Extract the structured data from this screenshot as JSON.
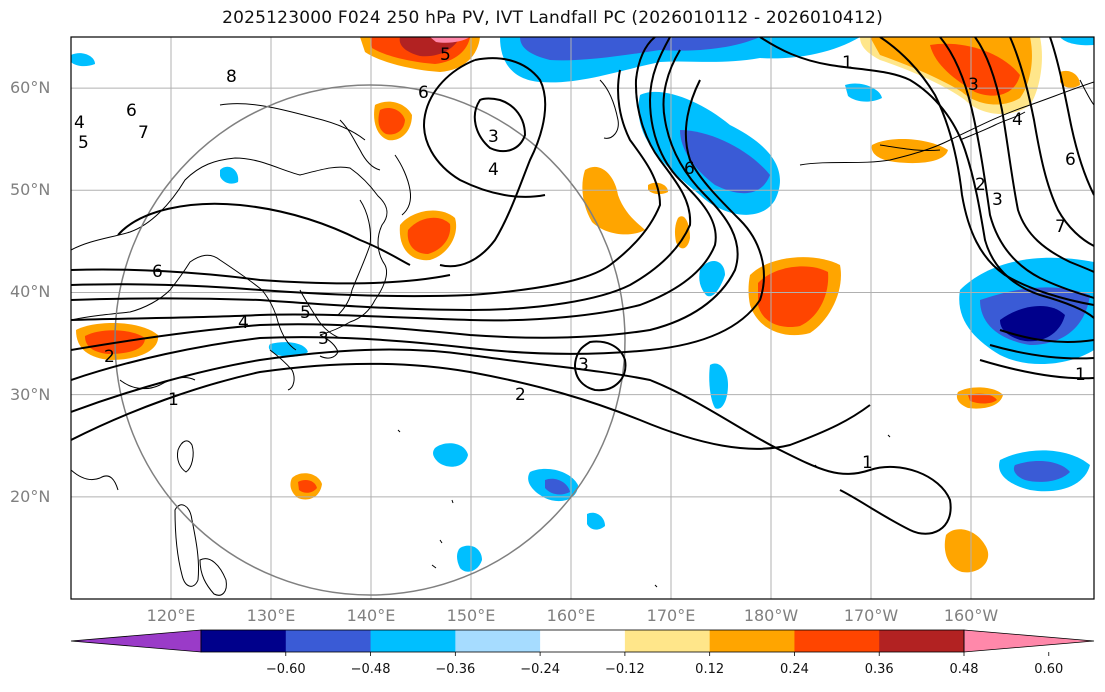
{
  "title": "2025123000 F024 250 hPa PV, IVT Landfall PC (2026010112 - 2026010412)",
  "map": {
    "lat_ticks": [
      {
        "label": "60°N",
        "lat": 60
      },
      {
        "label": "50°N",
        "lat": 50
      },
      {
        "label": "40°N",
        "lat": 40
      },
      {
        "label": "30°N",
        "lat": 30
      },
      {
        "label": "20°N",
        "lat": 20
      }
    ],
    "lon_ticks": [
      {
        "label": "120°E",
        "lon": 120
      },
      {
        "label": "130°E",
        "lon": 130
      },
      {
        "label": "140°E",
        "lon": 140
      },
      {
        "label": "150°E",
        "lon": 150
      },
      {
        "label": "160°E",
        "lon": 160
      },
      {
        "label": "170°E",
        "lon": 170
      },
      {
        "label": "180°W",
        "lon": 180
      },
      {
        "label": "170°W",
        "lon": 190
      },
      {
        "label": "160°W",
        "lon": 200
      }
    ],
    "contour_labels": [
      "1",
      "2",
      "3",
      "4",
      "5",
      "6",
      "7",
      "8"
    ],
    "colors": {
      "land_line": "#000000",
      "grid": "#b0b0b0",
      "circle": "#808080"
    }
  },
  "colorbar": {
    "colors": [
      "#9a3bc8",
      "#00008b",
      "#3a5bd6",
      "#00bfff",
      "#a6dcff",
      "#ffffff",
      "#ffe68a",
      "#ffa500",
      "#ff4500",
      "#b22222",
      "#ff88aa"
    ],
    "tick_labels": [
      "−0.60",
      "−0.48",
      "−0.36",
      "−0.24",
      "−0.12",
      "0.12",
      "0.24",
      "0.36",
      "0.48",
      "0.60"
    ]
  }
}
